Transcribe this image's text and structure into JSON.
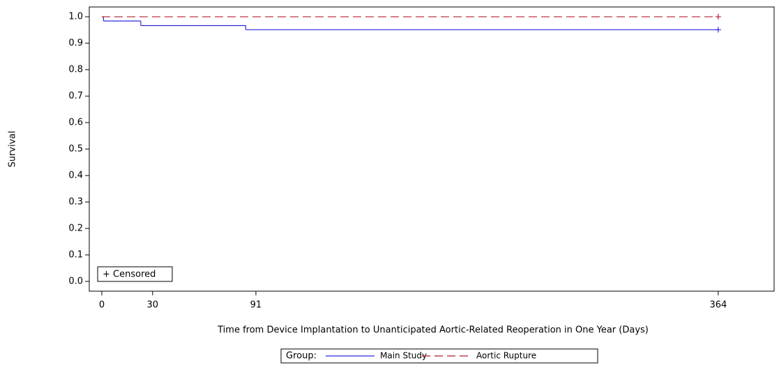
{
  "chart_data": {
    "type": "step",
    "y_label": "Survival",
    "x_label": "Time from Device Implantation to Unanticipated Aortic-Related Reoperation in One Year (Days)",
    "censored_label": "+ Censored",
    "legend_title": "Group:",
    "xlim": [
      -7.4,
      397
    ],
    "xticks": [
      0,
      30,
      91,
      364
    ],
    "ylim": [
      -0.037,
      1.037
    ],
    "yticks": [
      {
        "value": 0,
        "label": "0.0"
      },
      0.1,
      0.2,
      0.3,
      0.4,
      0.5,
      0.6,
      0.7,
      0.8,
      0.9,
      {
        "value": 1,
        "label": "1.0"
      }
    ],
    "series": [
      {
        "name": "Main Study",
        "color": "#2b2bdc",
        "dash": false,
        "x": [
          0,
          1,
          23,
          85,
          364
        ],
        "values": [
          1.0,
          0.984,
          0.967,
          0.951,
          0.951
        ],
        "censored": [
          364
        ]
      },
      {
        "name": "Aortic Rupture",
        "color": "#b01c2e",
        "dash": true,
        "x": [
          0,
          364
        ],
        "values": [
          1.0,
          1.0
        ],
        "censored": [
          364
        ]
      }
    ]
  }
}
